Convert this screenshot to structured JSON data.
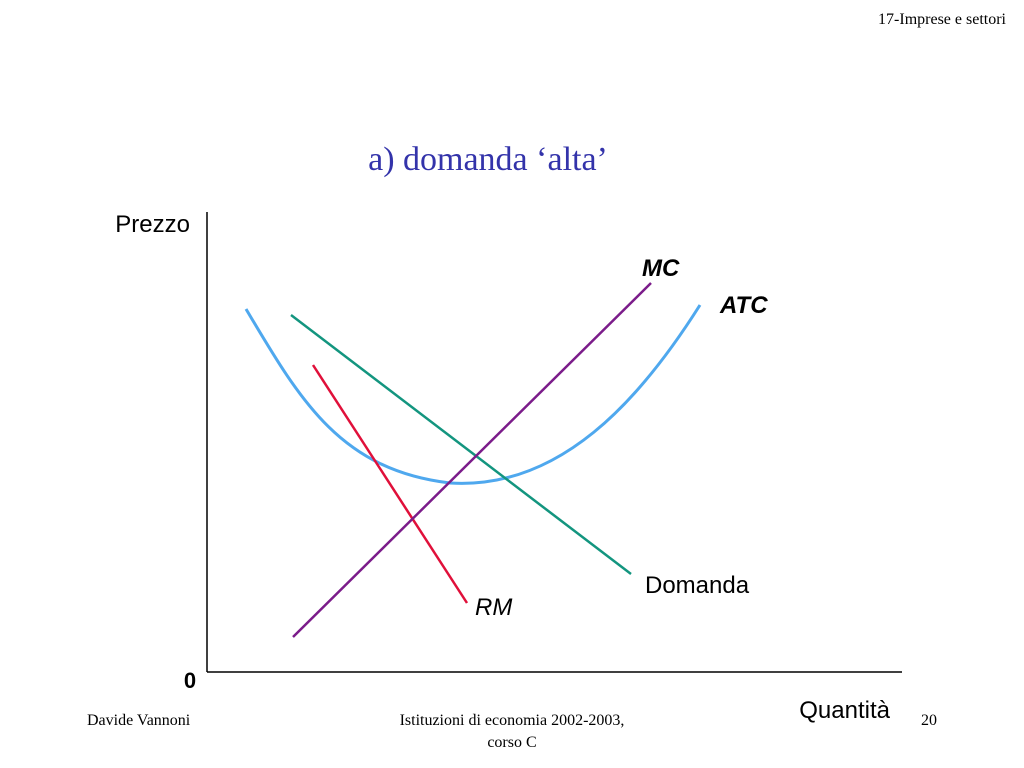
{
  "header": {
    "section": "17-Imprese e settori"
  },
  "title": "a) domanda ‘alta’",
  "diagram": {
    "y_axis_label": "Prezzo",
    "x_axis_label": "Quantità",
    "origin_label": "0",
    "curves": [
      {
        "label": "MC"
      },
      {
        "label": "ATC"
      },
      {
        "label": "Domanda"
      },
      {
        "label": "RM"
      }
    ]
  },
  "footer": {
    "author": "Davide Vannoni",
    "course_lines": [
      "Istituzioni di economia 2002-2003,",
      "corso C"
    ],
    "page": "20"
  }
}
